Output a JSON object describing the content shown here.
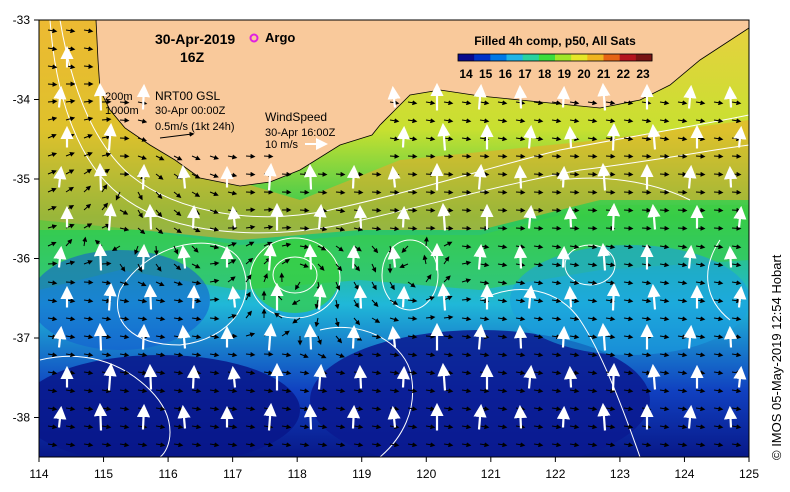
{
  "header": {
    "date": "30-Apr-2019",
    "hour": "16Z",
    "argo_label": "Argo",
    "argo_marker_color": "#e020e0"
  },
  "colorbar": {
    "title": "Filled 4h comp, p50, All Sats",
    "ticks": [
      "14",
      "15",
      "16",
      "17",
      "18",
      "19",
      "20",
      "21",
      "22",
      "23"
    ],
    "colors": [
      "#0a0a8c",
      "#0032c8",
      "#0078e6",
      "#20b4e6",
      "#28d2a0",
      "#3cdc3c",
      "#a0e628",
      "#e6e628",
      "#f0b41e",
      "#e66414",
      "#b4141e",
      "#781414"
    ]
  },
  "legend": {
    "iso_200": "200m",
    "iso_1000": "1000m",
    "current_product": "NRT00 GSL",
    "current_time": "30-Apr 00:00Z",
    "current_scale": "0.5m/s (1kt 24h)",
    "wind_title": "WindSpeed",
    "wind_time": "30-Apr 16:00Z",
    "wind_scale": "10 m/s"
  },
  "axes": {
    "lon_ticks": [
      "114",
      "115",
      "116",
      "117",
      "118",
      "119",
      "120",
      "121",
      "122",
      "123",
      "124",
      "125"
    ],
    "lat_ticks": [
      "-33",
      "-34",
      "-35",
      "-36",
      "-37",
      "-38"
    ]
  },
  "credit": "© IMOS 05-May-2019 12:54 Hobart",
  "colors": {
    "land": "#f9c99b",
    "frame": "#000000",
    "contour": "#ffffff"
  }
}
